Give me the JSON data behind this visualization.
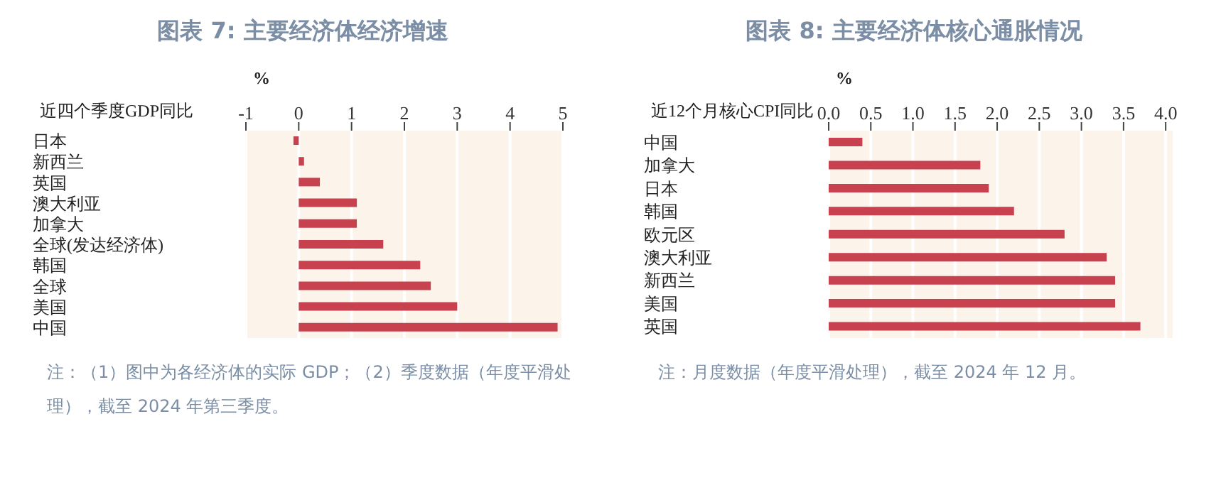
{
  "chart_data": [
    {
      "type": "bar",
      "orientation": "horizontal",
      "title": "图表 7: 主要经济体经济增速",
      "ylabel": "近四个季度GDP同比",
      "xlabel": "%",
      "categories": [
        "日本",
        "新西兰",
        "英国",
        "澳大利亚",
        "加拿大",
        "全球(发达经济体)",
        "韩国",
        "全球",
        "美国",
        "中国"
      ],
      "values": [
        -0.1,
        0.1,
        0.4,
        1.1,
        1.1,
        1.6,
        2.3,
        2.5,
        3.0,
        4.9
      ],
      "color": "#c8414f",
      "xlim": [
        -1,
        5
      ],
      "xticks": [
        -1,
        0,
        1,
        2,
        3,
        4,
        5
      ],
      "grid": "x",
      "annotations": [
        "注：（1）图中为各经济体的实际 GDP；（2）季度数据（年度平滑处理），截至 2024 年第三季度。"
      ]
    },
    {
      "type": "bar",
      "orientation": "horizontal",
      "title": "图表 8: 主要经济体核心通胀情况",
      "ylabel": "近12个月核心CPI同比",
      "xlabel": "%",
      "categories": [
        "中国",
        "加拿大",
        "日本",
        "韩国",
        "欧元区",
        "澳大利亚",
        "新西兰",
        "美国",
        "英国"
      ],
      "values": [
        0.4,
        1.8,
        1.9,
        2.2,
        2.8,
        3.3,
        3.4,
        3.4,
        3.7
      ],
      "color": "#c8414f",
      "xlim": [
        0,
        4.1
      ],
      "xticks": [
        {
          "value": 0,
          "label": "0.0"
        },
        0.5,
        {
          "value": 1,
          "label": "1.0"
        },
        1.5,
        {
          "value": 2,
          "label": "2.0"
        },
        2.5,
        {
          "value": 3,
          "label": "3.0"
        },
        3.5,
        {
          "value": 4,
          "label": "4.0"
        }
      ],
      "grid": "x",
      "annotations": [
        "注：月度数据（年度平滑处理），截至 2024 年 12 月。"
      ]
    }
  ]
}
